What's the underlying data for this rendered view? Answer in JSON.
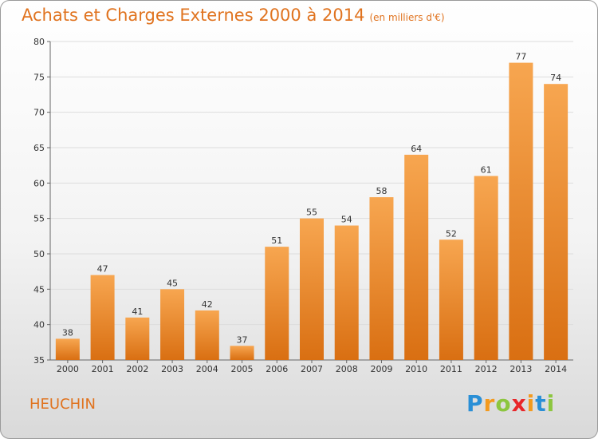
{
  "header": {
    "title": "Achats et Charges Externes 2000 à 2014",
    "unit": "(en milliers d'€)"
  },
  "footer": {
    "place": "HEUCHIN",
    "logo_letters": [
      "P",
      "r",
      "o",
      "x",
      "i",
      "t",
      "i"
    ],
    "logo_colors": [
      "#2a8fd6",
      "#f39a1e",
      "#8cc63f",
      "#e8262a",
      "#f39a1e",
      "#2a8fd6",
      "#8cc63f"
    ]
  },
  "colors": {
    "bar_light": "#f7a650",
    "bar_dark": "#d96f12",
    "title": "#e0731f",
    "grid": "#dddddd"
  },
  "chart_data": {
    "type": "bar",
    "title": "Achats et Charges Externes 2000 à 2014",
    "subtitle": "(en milliers d'€)",
    "xlabel": "",
    "ylabel": "",
    "categories": [
      "2000",
      "2001",
      "2002",
      "2003",
      "2004",
      "2005",
      "2006",
      "2007",
      "2008",
      "2009",
      "2010",
      "2011",
      "2012",
      "2013",
      "2014"
    ],
    "values": [
      38,
      47,
      41,
      45,
      42,
      37,
      51,
      55,
      54,
      58,
      64,
      52,
      61,
      77,
      74
    ],
    "ylim": [
      35,
      80
    ],
    "yticks": [
      35,
      40,
      45,
      50,
      55,
      60,
      65,
      70,
      75,
      80
    ],
    "grid": true,
    "data_labels": true
  }
}
